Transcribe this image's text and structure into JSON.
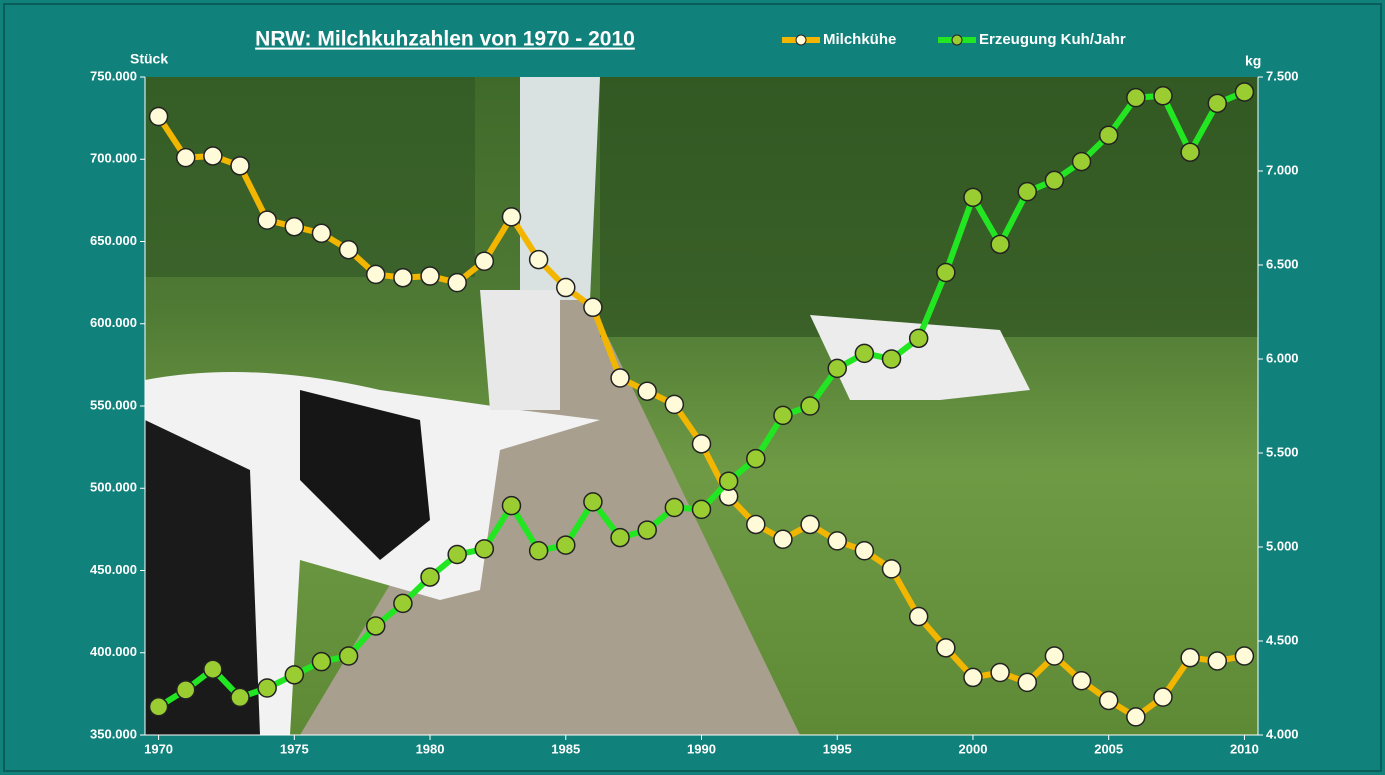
{
  "chart_data": {
    "type": "line",
    "title": "NRW: Milchkuhzahlen von 1970 - 2010",
    "y_label": "Stück",
    "y2_label": "kg",
    "x": [
      1970,
      1971,
      1972,
      1973,
      1974,
      1975,
      1976,
      1977,
      1978,
      1979,
      1980,
      1981,
      1982,
      1983,
      1984,
      1985,
      1986,
      1987,
      1988,
      1989,
      1990,
      1991,
      1992,
      1993,
      1994,
      1995,
      1996,
      1997,
      1998,
      1999,
      2000,
      2001,
      2002,
      2003,
      2004,
      2005,
      2006,
      2007,
      2008,
      2009,
      2010
    ],
    "xlim": [
      1969.5,
      2010.5
    ],
    "xticks": [
      1970,
      1975,
      1980,
      1985,
      1990,
      1995,
      2000,
      2005,
      2010
    ],
    "ylim": [
      350000,
      750000
    ],
    "yticks": [
      {
        "value": 350000,
        "label": "350.000"
      },
      {
        "value": 400000,
        "label": "400.000"
      },
      {
        "value": 450000,
        "label": "450.000"
      },
      {
        "value": 500000,
        "label": "500.000"
      },
      {
        "value": 550000,
        "label": "550.000"
      },
      {
        "value": 600000,
        "label": "600.000"
      },
      {
        "value": 650000,
        "label": "650.000"
      },
      {
        "value": 700000,
        "label": "700.000"
      },
      {
        "value": 750000,
        "label": "750.000"
      }
    ],
    "y2lim": [
      4000,
      7500
    ],
    "y2ticks": [
      {
        "value": 4000,
        "label": "4.000"
      },
      {
        "value": 4500,
        "label": "4.500"
      },
      {
        "value": 5000,
        "label": "5.000"
      },
      {
        "value": 5500,
        "label": "5.500"
      },
      {
        "value": 6000,
        "label": "6.000"
      },
      {
        "value": 6500,
        "label": "6.500"
      },
      {
        "value": 7000,
        "label": "7.000"
      },
      {
        "value": 7500,
        "label": "7.500"
      }
    ],
    "series": [
      {
        "name": "Milchkühe",
        "color": "#f2b600",
        "marker_color": "#fffbd8",
        "values": [
          726000,
          701000,
          702000,
          696000,
          663000,
          659000,
          655000,
          645000,
          630000,
          628000,
          629000,
          625000,
          638000,
          665000,
          639000,
          622000,
          610000,
          567000,
          559000,
          551000,
          527000,
          495000,
          478000,
          469000,
          478000,
          468000,
          462000,
          451000,
          422000,
          403000,
          385000,
          388000,
          382000,
          398000,
          383000,
          371000,
          361000,
          373000,
          397000,
          395000,
          398000
        ]
      },
      {
        "name": "Erzeugung Kuh/Jahr",
        "color": "#22e622",
        "marker_color": "#9acd32",
        "axis": "y2",
        "values": [
          4150,
          4240,
          4350,
          4200,
          4250,
          4320,
          4390,
          4420,
          4580,
          4700,
          4840,
          4960,
          4990,
          5220,
          4980,
          5010,
          5240,
          5050,
          5090,
          5210,
          5200,
          5350,
          5470,
          5700,
          5750,
          5950,
          6030,
          6000,
          6110,
          6460,
          6860,
          6610,
          6890,
          6950,
          7050,
          7190,
          7390,
          7400,
          7100,
          7360,
          7420
        ]
      }
    ]
  }
}
